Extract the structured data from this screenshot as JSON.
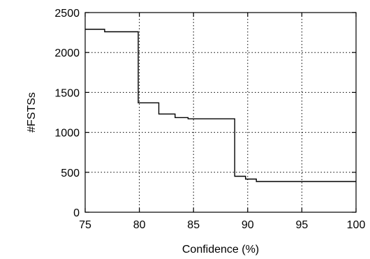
{
  "chart_data": {
    "type": "line",
    "step": true,
    "title": "",
    "xlabel": "Confidence (%)",
    "ylabel": "#FSTSs",
    "xlim": [
      75,
      100
    ],
    "ylim": [
      0,
      2500
    ],
    "xticks": [
      75,
      80,
      85,
      90,
      95,
      100
    ],
    "yticks": [
      0,
      500,
      1000,
      1500,
      2000,
      2500
    ],
    "grid": true,
    "legend": "none",
    "line_color": "#000000",
    "series": [
      {
        "x": [
          75,
          76.8,
          76.8,
          79.9,
          79.9,
          81.8,
          81.8,
          83.3,
          83.3,
          84.5,
          84.5,
          88.8,
          88.8,
          89.8,
          89.8,
          90.8,
          90.8,
          100
        ],
        "y": [
          2290,
          2290,
          2260,
          2260,
          1370,
          1370,
          1230,
          1230,
          1185,
          1185,
          1170,
          1170,
          450,
          450,
          415,
          415,
          385,
          385
        ]
      }
    ]
  }
}
